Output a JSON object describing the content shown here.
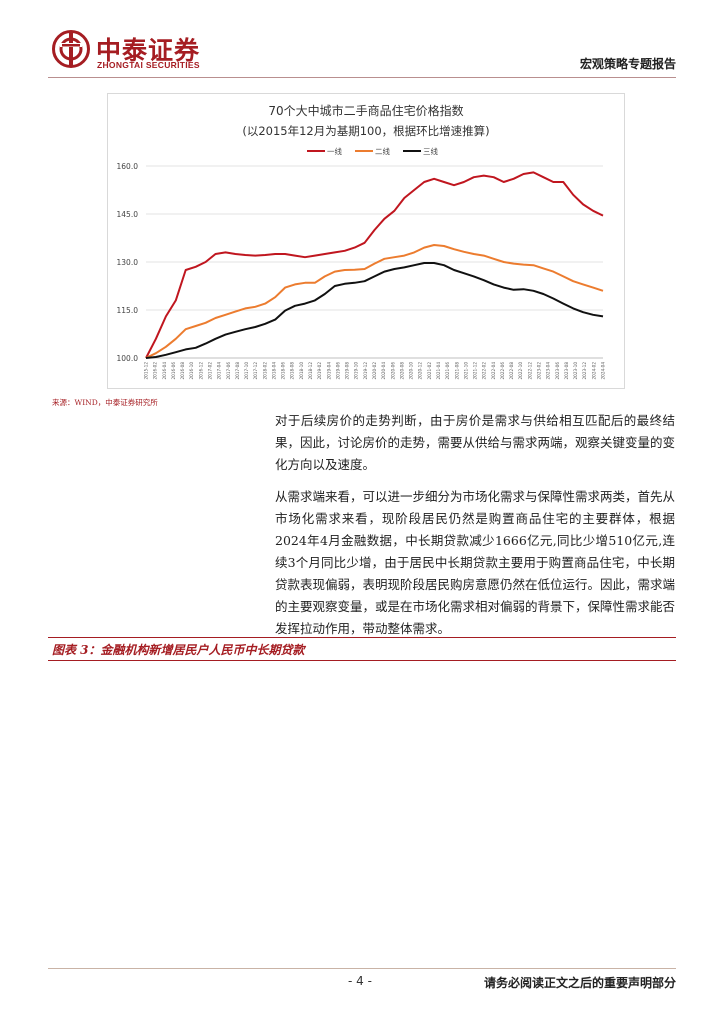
{
  "header": {
    "logo_cn": "中泰证券",
    "logo_en": "ZHONGTAI SECURITIES",
    "report_type": "宏观策略专题报告"
  },
  "colors": {
    "brand": "#a51d22",
    "tier1": "#c0161f",
    "tier2": "#ec7c2f",
    "tier3": "#111111"
  },
  "chart_data": {
    "type": "line",
    "title": "70个大中城市二手商品住宅价格指数",
    "subtitle": "(以2015年12月为基期100，根据环比增速推算)",
    "legend_position": "top-center",
    "grid": "horizontal",
    "ylim": [
      100,
      160
    ],
    "yticks": [
      "100.0",
      "115.0",
      "130.0",
      "145.0",
      "160.0"
    ],
    "x_start": "2015-12",
    "x_end": "2024-04",
    "x_tick_labels": [
      "2015-12",
      "2016-02",
      "2016-04",
      "2016-06",
      "2016-08",
      "2016-10",
      "2016-12",
      "2017-02",
      "2017-04",
      "2017-06",
      "2017-08",
      "2017-10",
      "2017-12",
      "2018-02",
      "2018-04",
      "2018-06",
      "2018-08",
      "2018-10",
      "2018-12",
      "2019-02",
      "2019-04",
      "2019-06",
      "2019-08",
      "2019-10",
      "2019-12",
      "2020-02",
      "2020-04",
      "2020-06",
      "2020-08",
      "2020-10",
      "2020-12",
      "2021-02",
      "2021-04",
      "2021-06",
      "2021-08",
      "2021-10",
      "2021-12",
      "2022-02",
      "2022-04",
      "2022-06",
      "2022-08",
      "2022-10",
      "2022-12",
      "2023-02",
      "2023-04",
      "2023-06",
      "2023-08",
      "2023-10",
      "2023-12",
      "2024-02",
      "2024-04"
    ],
    "series": [
      {
        "name": "一线",
        "values": [
          100,
          106,
          113,
          118,
          127.5,
          128.5,
          130,
          132.5,
          133,
          132.5,
          132.2,
          132,
          132.2,
          132.5,
          132.5,
          132,
          131.5,
          132,
          132.5,
          133,
          133.5,
          134.5,
          136,
          140,
          143.5,
          146,
          150,
          152.5,
          155,
          156,
          155,
          154,
          155,
          156.5,
          157,
          156.5,
          155,
          156,
          157.5,
          158,
          156.5,
          155,
          155,
          151,
          148,
          146,
          144.5
        ]
      },
      {
        "name": "二线",
        "values": [
          100,
          101.5,
          103.5,
          106,
          109,
          110,
          111,
          112.5,
          113.5,
          114.5,
          115.5,
          116,
          117,
          119,
          122,
          123,
          123.5,
          123.5,
          125.5,
          127,
          127.5,
          127.6,
          127.8,
          129.5,
          131,
          131.5,
          132,
          133,
          134.5,
          135.3,
          135,
          134,
          133.2,
          132.5,
          132,
          131,
          130,
          129.5,
          129.2,
          129,
          128,
          127,
          125.5,
          124,
          123,
          122,
          121
        ]
      },
      {
        "name": "三线",
        "values": [
          100,
          100.3,
          101,
          101.8,
          102.7,
          103.2,
          104.5,
          106,
          107.3,
          108.2,
          109,
          109.7,
          110.7,
          112,
          114.8,
          116.3,
          117,
          118,
          120,
          122.5,
          123.2,
          123.5,
          124,
          125.5,
          127,
          127.8,
          128.3,
          129,
          129.7,
          129.7,
          129,
          127.5,
          126.5,
          125.5,
          124.3,
          123,
          122,
          121.3,
          121.5,
          121,
          120,
          118.6,
          117,
          115.5,
          114.3,
          113.5,
          113
        ]
      }
    ]
  },
  "source_note": "来源：WIND，中泰证券研究所",
  "body": {
    "para1": "对于后续房价的走势判断，由于房价是需求与供给相互匹配后的最终结果，因此，讨论房价的走势，需要从供给与需求两端，观察关键变量的变化方向以及速度。",
    "para2": "从需求端来看，可以进一步细分为市场化需求与保障性需求两类，首先从市场化需求来看，现阶段居民仍然是购置商品住宅的主要群体，根据2024年4月金融数据，中长期贷款减少1666亿元,同比少增510亿元,连续3个月同比少增，由于居民中长期贷款主要用于购置商品住宅，中长期贷款表现偏弱，表明现阶段居民购房意愿仍然在低位运行。因此，需求端的主要观察变量，或是在市场化需求相对偏弱的背景下，保障性需求能否发挥拉动作用，带动整体需求。"
  },
  "figure3_title": "图表 3：金融机构新增居民户人民币中长期贷款",
  "footer": {
    "page_number": "- 4 -",
    "disclaimer": "请务必阅读正文之后的重要声明部分"
  }
}
